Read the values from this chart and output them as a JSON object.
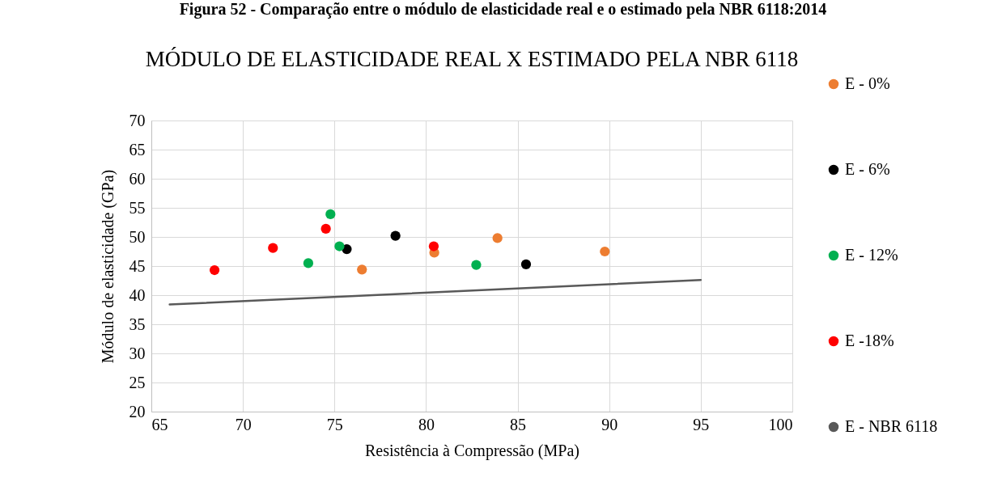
{
  "chart_data": {
    "type": "scatter",
    "title": "MÓDULO DE ELASTICIDADE REAL X ESTIMADO PELA NBR 6118",
    "xlabel": "Resistência à Compressão (MPa)",
    "ylabel": "Módulo de elasticidade  (GPa)",
    "annotations": [
      "Figura 52 - Comparação entre o módulo de elasticidade real e o estimado pela NBR 6118:2014"
    ],
    "series": [
      {
        "name": "E - 0%",
        "color": "#ed7d31",
        "x": [
          76.5,
          80.45,
          83.9,
          89.76
        ],
        "values": [
          44.4,
          47.3,
          49.8,
          47.5
        ]
      },
      {
        "name": "E - 6%",
        "color": "#000000",
        "x": [
          75.67,
          78.33,
          85.46
        ],
        "values": [
          47.9,
          50.2,
          45.3
        ]
      },
      {
        "name": "E - 12%",
        "color": "#00b050",
        "x": [
          73.57,
          74.78,
          75.27,
          82.74
        ],
        "values": [
          45.5,
          53.9,
          48.4,
          45.2
        ]
      },
      {
        "name": "E -18%",
        "color": "#ff0000",
        "x": [
          68.45,
          71.64,
          74.53,
          80.42
        ],
        "values": [
          44.3,
          48.1,
          51.4,
          48.4
        ]
      },
      {
        "name": "E - NBR 6118",
        "type": "line",
        "marker": "none",
        "color": "#595959",
        "x": [
          66,
          95
        ],
        "values": [
          38.4,
          42.6
        ]
      }
    ],
    "xlim": [
      65,
      100
    ],
    "xticks": [
      65,
      70,
      75,
      80,
      85,
      90,
      95,
      100
    ],
    "ylim": [
      20,
      70
    ],
    "yticks": [
      20,
      25,
      30,
      35,
      40,
      45,
      50,
      55,
      60,
      65,
      70
    ],
    "grid": true,
    "legend": "right",
    "marker": "circle"
  }
}
